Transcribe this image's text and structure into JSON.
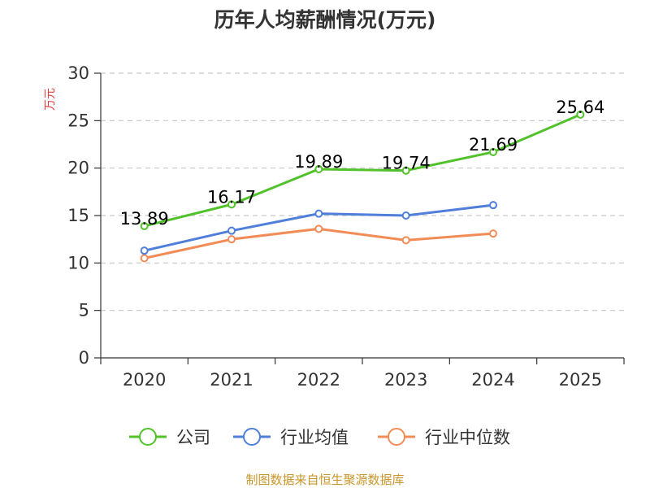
{
  "chart_data": {
    "type": "line",
    "title": "历年人均薪酬情况(万元)",
    "xlabel": "",
    "ylabel": "万元",
    "categories": [
      "2020",
      "2021",
      "2022",
      "2023",
      "2024",
      "2025"
    ],
    "ylim": [
      0,
      30
    ],
    "yticks": [
      0,
      5,
      10,
      15,
      20,
      25,
      30
    ],
    "grid": true,
    "legend_position": "bottom",
    "series": [
      {
        "name": "公司",
        "color": "#52c22a",
        "values": [
          13.89,
          16.17,
          19.89,
          19.74,
          21.69,
          25.64
        ],
        "labels": [
          "13.89",
          "16.17",
          "19.89",
          "19.74",
          "21.69",
          "25.64"
        ]
      },
      {
        "name": "行业均值",
        "color": "#4f7fd8",
        "values": [
          11.3,
          13.4,
          15.2,
          15.0,
          16.1,
          null
        ]
      },
      {
        "name": "行业中位数",
        "color": "#f28c57",
        "values": [
          10.5,
          12.5,
          13.6,
          12.4,
          13.1,
          null
        ]
      }
    ]
  },
  "source": "制图数据来自恒生聚源数据库"
}
